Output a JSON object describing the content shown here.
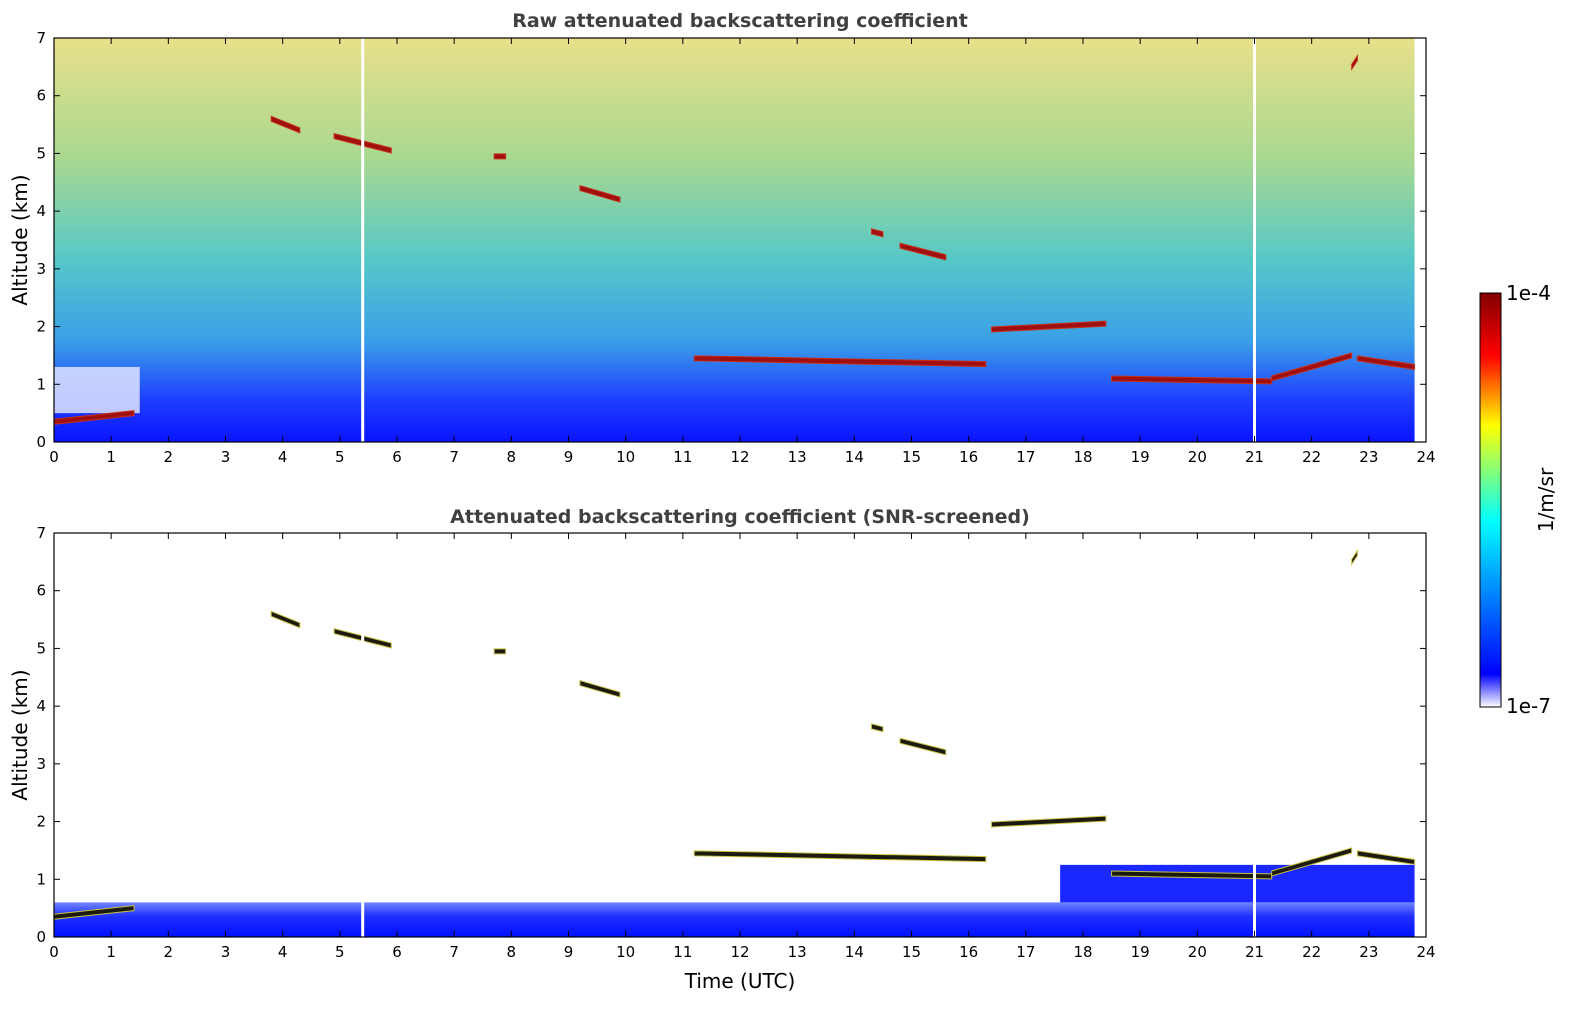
{
  "chart_data": [
    {
      "type": "heatmap",
      "title": "Raw attenuated backscattering coefficient",
      "xlabel": "",
      "ylabel": "Altitude (km)",
      "xlim": [
        0,
        24
      ],
      "ylim": [
        0,
        7
      ],
      "xticks": [
        "0",
        "1",
        "2",
        "3",
        "4",
        "5",
        "6",
        "7",
        "8",
        "9",
        "10",
        "11",
        "12",
        "13",
        "14",
        "15",
        "16",
        "17",
        "18",
        "19",
        "20",
        "21",
        "22",
        "23",
        "24"
      ],
      "yticks": [
        "0",
        "1",
        "2",
        "3",
        "4",
        "5",
        "6",
        "7"
      ],
      "data_end_time": 23.8,
      "missing_times": [
        5.4,
        21.0
      ],
      "cloud_layers": [
        {
          "t": [
            0.0,
            1.4
          ],
          "alt": [
            0.35,
            0.5
          ]
        },
        {
          "t": [
            3.8,
            4.3
          ],
          "alt": [
            5.6,
            5.4
          ]
        },
        {
          "t": [
            4.9,
            5.9
          ],
          "alt": [
            5.3,
            5.05
          ]
        },
        {
          "t": [
            7.7,
            7.9
          ],
          "alt": [
            4.95,
            4.95
          ]
        },
        {
          "t": [
            9.2,
            9.9
          ],
          "alt": [
            4.4,
            4.2
          ]
        },
        {
          "t": [
            14.3,
            14.5
          ],
          "alt": [
            3.65,
            3.6
          ]
        },
        {
          "t": [
            14.8,
            15.6
          ],
          "alt": [
            3.4,
            3.2
          ]
        },
        {
          "t": [
            11.2,
            16.3
          ],
          "alt": [
            1.45,
            1.35
          ]
        },
        {
          "t": [
            16.4,
            18.4
          ],
          "alt": [
            1.95,
            2.05
          ]
        },
        {
          "t": [
            18.5,
            21.3
          ],
          "alt": [
            1.1,
            1.05
          ]
        },
        {
          "t": [
            21.3,
            22.7
          ],
          "alt": [
            1.1,
            1.5
          ]
        },
        {
          "t": [
            22.8,
            23.8
          ],
          "alt": [
            1.45,
            1.3
          ]
        },
        {
          "t": [
            22.7,
            22.8
          ],
          "alt": [
            6.5,
            6.65
          ]
        }
      ]
    },
    {
      "type": "heatmap",
      "title": "Attenuated backscattering coefficient (SNR-screened)",
      "xlabel": "Time (UTC)",
      "ylabel": "Altitude (km)",
      "xlim": [
        0,
        24
      ],
      "ylim": [
        0,
        7
      ],
      "xticks": [
        "0",
        "1",
        "2",
        "3",
        "4",
        "5",
        "6",
        "7",
        "8",
        "9",
        "10",
        "11",
        "12",
        "13",
        "14",
        "15",
        "16",
        "17",
        "18",
        "19",
        "20",
        "21",
        "22",
        "23",
        "24"
      ],
      "yticks": [
        "0",
        "1",
        "2",
        "3",
        "4",
        "5",
        "6",
        "7"
      ],
      "data_end_time": 23.8,
      "missing_times": [
        5.4,
        21.0
      ]
    }
  ],
  "colorbar": {
    "label": "1/m/sr",
    "max_label": "1e-4",
    "min_label": "1e-7",
    "colors": [
      "#ffffff",
      "#0000ff",
      "#00ffff",
      "#ffff00",
      "#ff0000",
      "#800000"
    ]
  }
}
